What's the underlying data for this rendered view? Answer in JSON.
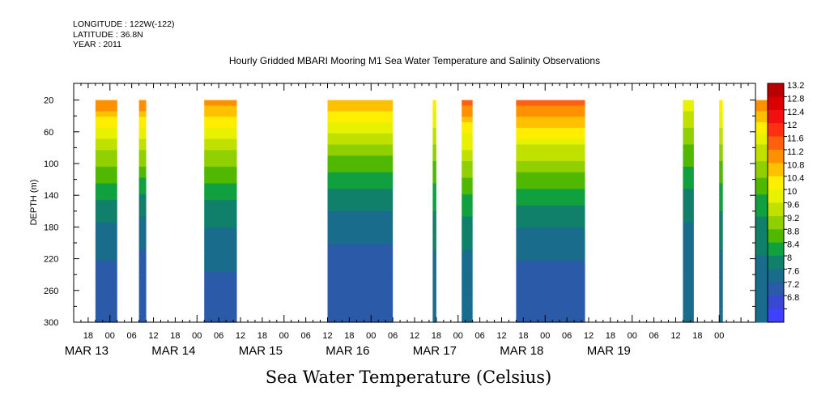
{
  "header": {
    "longitude": "LONGITUDE : 122W(-122)",
    "latitude": "LATITUDE : 36.8N",
    "year": "YEAR : 2011"
  },
  "chart_data": {
    "type": "heatmap",
    "title": "Hourly Gridded MBARI Mooring M1 Sea Water Temperature and Salinity Observations",
    "subtitle": "Sea Water Temperature (Celsius)",
    "ylabel": "DEPTH (m)",
    "ylim": [
      0,
      300
    ],
    "yticks": [
      20,
      60,
      100,
      140,
      180,
      220,
      260,
      300
    ],
    "x_hour_ticks": [
      "18",
      "00",
      "06",
      "12",
      "18",
      "00",
      "06",
      "12",
      "18",
      "00",
      "06",
      "12",
      "18",
      "00",
      "06",
      "12",
      "18",
      "00",
      "06",
      "12",
      "18",
      "00",
      "06",
      "12",
      "18",
      "00",
      "06",
      "12",
      "18",
      "00"
    ],
    "x_day_labels": [
      "MAR 13",
      "MAR 14",
      "MAR 15",
      "MAR 16",
      "MAR 17",
      "MAR 18",
      "MAR 19"
    ],
    "x_range_hours": [
      -10,
      178
    ],
    "colorbar": {
      "levels": [
        13.2,
        12.8,
        12.4,
        12,
        11.6,
        11.2,
        10.8,
        10.4,
        10,
        9.6,
        9.2,
        8.8,
        8.4,
        8,
        7.6,
        7.2,
        6.8
      ],
      "colors": [
        "#b80000",
        "#d80000",
        "#f01010",
        "#ff3010",
        "#ff6010",
        "#ff9000",
        "#ffc000",
        "#ffee00",
        "#e8f200",
        "#c0e000",
        "#90d000",
        "#50b800",
        "#10a040",
        "#10806a",
        "#1a6c8c",
        "#2a5aa8",
        "#3848d0",
        "#4040ff",
        "#6a30ff",
        "#9020ff",
        "#c010ff"
      ]
    },
    "segments": [
      {
        "start_hour": -4,
        "end_hour": 2,
        "surface_temp": 11.2,
        "deep_temp": 7.0
      },
      {
        "start_hour": 8,
        "end_hour": 10,
        "surface_temp": 11.2,
        "deep_temp": 6.9
      },
      {
        "start_hour": 26,
        "end_hour": 35,
        "surface_temp": 11.0,
        "deep_temp": 7.1
      },
      {
        "start_hour": 60,
        "end_hour": 78,
        "surface_temp": 10.8,
        "deep_temp": 6.9
      },
      {
        "start_hour": 89,
        "end_hour": 90,
        "surface_temp": 10.4,
        "deep_temp": 7.4
      },
      {
        "start_hour": 97,
        "end_hour": 100,
        "surface_temp": 11.4,
        "deep_temp": 7.3
      },
      {
        "start_hour": 112,
        "end_hour": 131,
        "surface_temp": 11.6,
        "deep_temp": 7.0
      },
      {
        "start_hour": 158,
        "end_hour": 161,
        "surface_temp": 10.0,
        "deep_temp": 7.2
      },
      {
        "start_hour": 168,
        "end_hour": 169,
        "surface_temp": 10.4,
        "deep_temp": 7.4
      },
      {
        "start_hour": 178,
        "end_hour": 183,
        "surface_temp": 11.2,
        "deep_temp": 7.4
      }
    ]
  }
}
